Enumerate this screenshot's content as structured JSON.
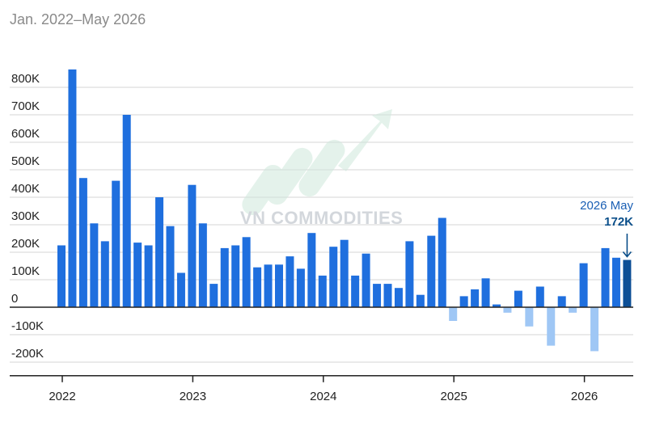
{
  "chart_data": {
    "type": "bar",
    "subtitle": "Jan. 2022–May 2026",
    "ylim": [
      -220000,
      870000
    ],
    "yticks": [
      {
        "value": 800000,
        "label": "800K"
      },
      {
        "value": 700000,
        "label": "700K"
      },
      {
        "value": 600000,
        "label": "600K"
      },
      {
        "value": 500000,
        "label": "500K"
      },
      {
        "value": 400000,
        "label": "400K"
      },
      {
        "value": 300000,
        "label": "300K"
      },
      {
        "value": 200000,
        "label": "200K"
      },
      {
        "value": 100000,
        "label": "100K"
      },
      {
        "value": 0,
        "label": "0"
      },
      {
        "value": -100000,
        "label": "-100K"
      },
      {
        "value": -200000,
        "label": "-200K"
      }
    ],
    "xticks": [
      "2022",
      "2023",
      "2024",
      "2025",
      "2026"
    ],
    "grid": true,
    "colors": {
      "positive": "#1f6fde",
      "negative": "#9fc7f5",
      "highlight": "#0d4f96",
      "axis": "#222222",
      "grid": "#d6d6d6"
    },
    "categories": [
      "2022-01",
      "2022-02",
      "2022-03",
      "2022-04",
      "2022-05",
      "2022-06",
      "2022-07",
      "2022-08",
      "2022-09",
      "2022-10",
      "2022-11",
      "2022-12",
      "2023-01",
      "2023-02",
      "2023-03",
      "2023-04",
      "2023-05",
      "2023-06",
      "2023-07",
      "2023-08",
      "2023-09",
      "2023-10",
      "2023-11",
      "2023-12",
      "2024-01",
      "2024-02",
      "2024-03",
      "2024-04",
      "2024-05",
      "2024-06",
      "2024-07",
      "2024-08",
      "2024-09",
      "2024-10",
      "2024-11",
      "2024-12",
      "2025-01",
      "2025-02",
      "2025-03",
      "2025-04",
      "2025-05",
      "2025-06",
      "2025-07",
      "2025-08",
      "2025-09",
      "2025-10",
      "2025-11",
      "2025-12",
      "2026-01",
      "2026-02",
      "2026-03",
      "2026-04",
      "2026-05"
    ],
    "values": [
      225000,
      865000,
      470000,
      305000,
      240000,
      460000,
      700000,
      235000,
      225000,
      400000,
      295000,
      125000,
      445000,
      305000,
      85000,
      215000,
      225000,
      255000,
      145000,
      155000,
      155000,
      185000,
      140000,
      270000,
      115000,
      220000,
      245000,
      115000,
      195000,
      85000,
      85000,
      70000,
      240000,
      45000,
      260000,
      325000,
      -50000,
      40000,
      65000,
      105000,
      10000,
      -20000,
      60000,
      -70000,
      75000,
      -140000,
      40000,
      -20000,
      160000,
      -160000,
      215000,
      180000,
      172000
    ],
    "highlight_index": 52,
    "annotation": {
      "label": "2026 May",
      "value_label": "172K"
    }
  },
  "watermark": {
    "text": "VN COMMODITIES"
  }
}
